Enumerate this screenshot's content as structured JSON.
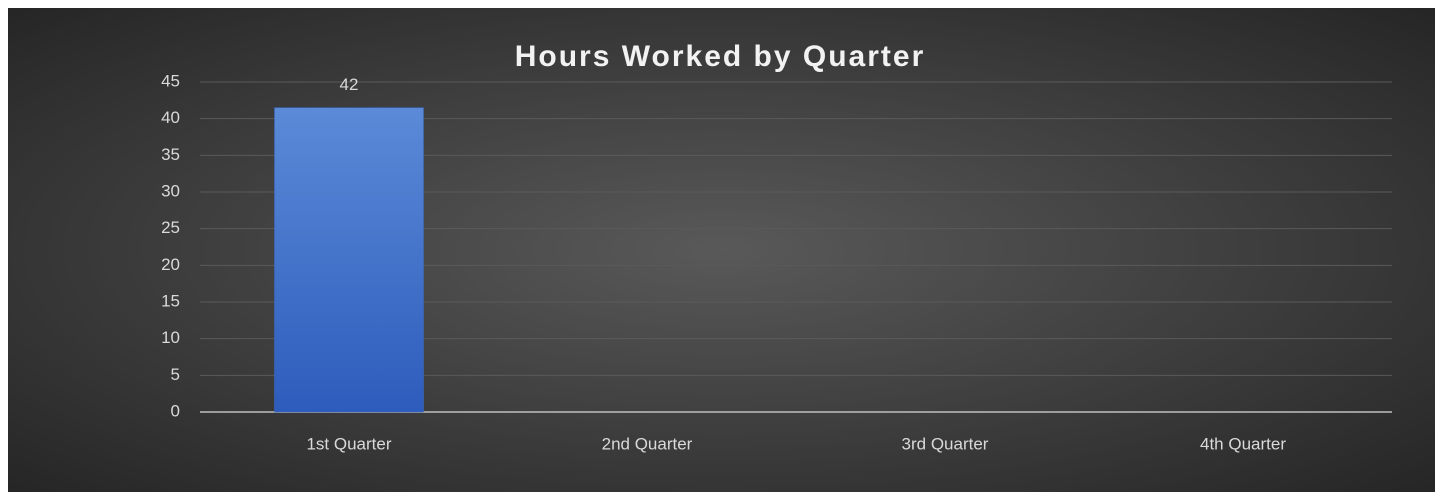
{
  "chart_data": {
    "type": "bar",
    "title": "Hours Worked by Quarter",
    "categories": [
      "1st Quarter",
      "2nd Quarter",
      "3rd Quarter",
      "4th Quarter"
    ],
    "values": [
      41.5,
      0,
      0,
      0
    ],
    "value_labels": [
      "42",
      null,
      null,
      null
    ],
    "color": "#3a6cc9",
    "ylim": [
      0,
      45
    ],
    "yticks": [
      0,
      5,
      10,
      15,
      20,
      25,
      30,
      35,
      40,
      45
    ],
    "grid": true
  }
}
